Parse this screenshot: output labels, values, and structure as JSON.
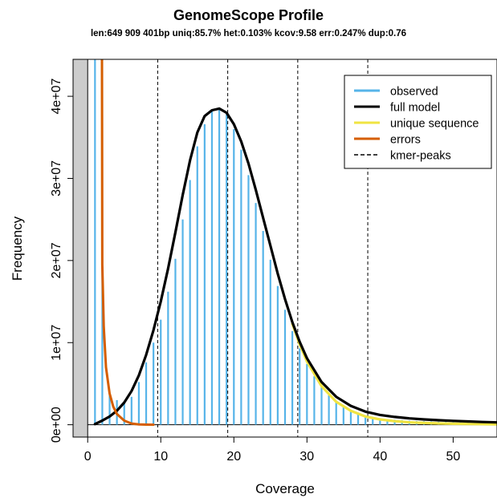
{
  "title": "GenomeScope Profile",
  "subtitle": "len:649 909 401bp uniq:85.7% het:0.103% kcov:9.58 err:0.247% dup:0.76",
  "chart_data": {
    "type": "line",
    "title": "GenomeScope Profile",
    "subtitle": "len:649 909 401bp uniq:85.7% het:0.103% kcov:9.58 err:0.247% dup:0.76",
    "xlabel": "Coverage",
    "ylabel": "Frequency",
    "xlim": [
      -2,
      56
    ],
    "ylim": [
      -1500000,
      44500000
    ],
    "xticks": [
      0,
      10,
      20,
      30,
      40,
      50
    ],
    "xtick_labels": [
      "0",
      "10",
      "20",
      "30",
      "40",
      "50"
    ],
    "yticks": [
      0,
      10000000,
      20000000,
      30000000,
      40000000
    ],
    "ytick_labels": [
      "0e+00",
      "1e+07",
      "2e+07",
      "3e+07",
      "4e+07"
    ],
    "shaded_region": {
      "x_from": -2,
      "x_to": 0,
      "color": "#cccccc"
    },
    "legend_position": "top-right",
    "legend": [
      {
        "label": "observed",
        "color": "#56b4e9",
        "style": "solid"
      },
      {
        "label": "full model",
        "color": "#000000",
        "style": "solid"
      },
      {
        "label": "unique sequence",
        "color": "#f0e442",
        "style": "solid"
      },
      {
        "label": "errors",
        "color": "#d55e00",
        "style": "solid"
      },
      {
        "label": "kmer-peaks",
        "color": "#000000",
        "style": "dashed"
      }
    ],
    "kmer_peaks": [
      9.58,
      19.16,
      28.74,
      38.32
    ],
    "observed": {
      "x": [
        1,
        2,
        3,
        4,
        5,
        6,
        7,
        8,
        9,
        10,
        11,
        12,
        13,
        14,
        15,
        16,
        17,
        18,
        19,
        20,
        21,
        22,
        23,
        24,
        25,
        26,
        27,
        28,
        29,
        30,
        31,
        32,
        33,
        34,
        35,
        36,
        37,
        38,
        39,
        40,
        41,
        42,
        43,
        44,
        45,
        46,
        47,
        48,
        49,
        50,
        51,
        52,
        53,
        54,
        55
      ],
      "y": [
        45000000,
        45000000,
        3800000,
        3000000,
        2600000,
        3400000,
        5200000,
        7600000,
        10000000,
        12800000,
        16200000,
        20200000,
        25000000,
        29800000,
        33900000,
        36600000,
        38200000,
        38500000,
        37800000,
        36000000,
        33500000,
        30400000,
        27000000,
        23600000,
        20100000,
        16900000,
        14000000,
        11400000,
        9300000,
        7400000,
        5900000,
        4600000,
        3600000,
        2800000,
        2200000,
        1800000,
        1400000,
        1150000,
        950000,
        800000,
        700000,
        620000,
        560000,
        500000,
        460000,
        430000,
        400000,
        370000,
        340000,
        310000,
        290000,
        270000,
        250000,
        230000,
        210000
      ]
    },
    "series": [
      {
        "name": "full model",
        "color": "#000000",
        "x": [
          1,
          2,
          3,
          4,
          5,
          6,
          7,
          8,
          9,
          10,
          11,
          12,
          13,
          14,
          15,
          16,
          17,
          18,
          19,
          20,
          21,
          22,
          23,
          24,
          25,
          26,
          27,
          28,
          29,
          30,
          32,
          34,
          36,
          38,
          40,
          42,
          44,
          46,
          48,
          50,
          52,
          54,
          56
        ],
        "y": [
          80000,
          500000,
          1000000,
          1700000,
          2700000,
          4100000,
          6000000,
          8500000,
          11500000,
          15000000,
          19000000,
          23400000,
          28000000,
          32200000,
          35600000,
          37600000,
          38300000,
          38500000,
          38000000,
          36600000,
          34500000,
          31800000,
          28600000,
          25200000,
          21800000,
          18400000,
          15300000,
          12500000,
          10100000,
          8100000,
          5200000,
          3400000,
          2300000,
          1600000,
          1200000,
          950000,
          780000,
          650000,
          550000,
          470000,
          400000,
          340000,
          290000
        ]
      },
      {
        "name": "unique sequence",
        "color": "#f0e442",
        "x": [
          28,
          29,
          30,
          32,
          34,
          36,
          38,
          40,
          42,
          44,
          46,
          48,
          50,
          52,
          54,
          56
        ],
        "y": [
          12300000,
          9800000,
          7700000,
          4700000,
          2800000,
          1700000,
          1000000,
          650000,
          430000,
          300000,
          220000,
          160000,
          120000,
          90000,
          70000,
          50000
        ]
      },
      {
        "name": "errors",
        "color": "#d55e00",
        "x": [
          1.95,
          2.0,
          2.2,
          2.5,
          3.0,
          3.5,
          4.0,
          5.0,
          6.0,
          7.0,
          8.0,
          9.0
        ],
        "y": [
          45000000,
          19500000,
          12000000,
          7000000,
          3800000,
          2200000,
          1300000,
          500000,
          150000,
          40000,
          10000,
          0
        ]
      }
    ]
  }
}
